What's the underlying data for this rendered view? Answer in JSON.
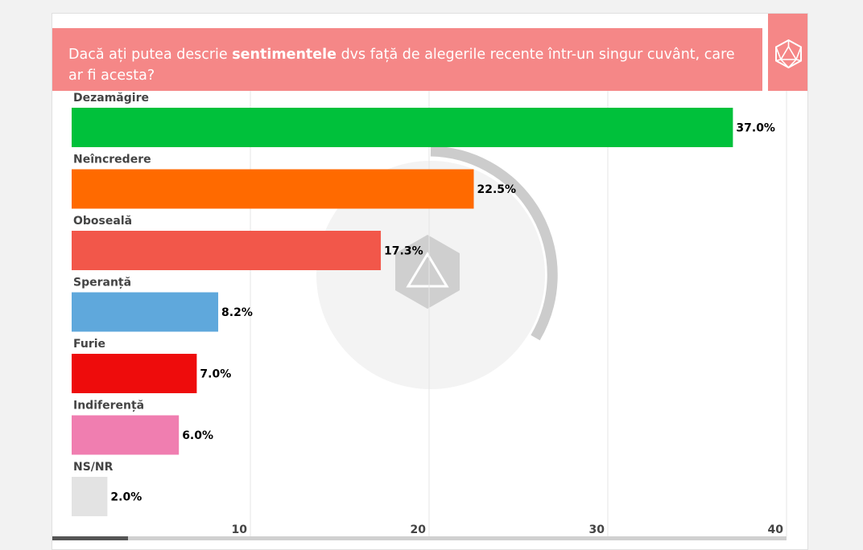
{
  "title_parts": {
    "before": "Dacă ați putea descrie ",
    "bold": "sentimentele",
    "after": " dvs față de alegerile recente într-un singur cuvânt, care ar fi acesta?"
  },
  "colors": {
    "header_bg": "#f58787",
    "page_bg": "#f2f2f2"
  },
  "logo_icon": "d20-dice-icon",
  "chart_data": {
    "type": "bar",
    "orientation": "horizontal",
    "categories": [
      "Dezamăgire",
      "Neîncredere",
      "Oboseală",
      "Speranță",
      "Furie",
      "Indiferență",
      "NS/NR"
    ],
    "values": [
      37.0,
      22.5,
      17.3,
      8.2,
      7.0,
      6.0,
      2.0
    ],
    "value_labels": [
      "37.0%",
      "22.5%",
      "17.3%",
      "8.2%",
      "7.0%",
      "6.0%",
      "2.0%"
    ],
    "colors": [
      "#00c13b",
      "#ff6a00",
      "#f2574a",
      "#5fa8dc",
      "#ee0c0c",
      "#f07eb0",
      "#e3e3e3"
    ],
    "xlim": [
      0,
      40
    ],
    "ticks": [
      10,
      20,
      30,
      40
    ],
    "grid": true
  }
}
